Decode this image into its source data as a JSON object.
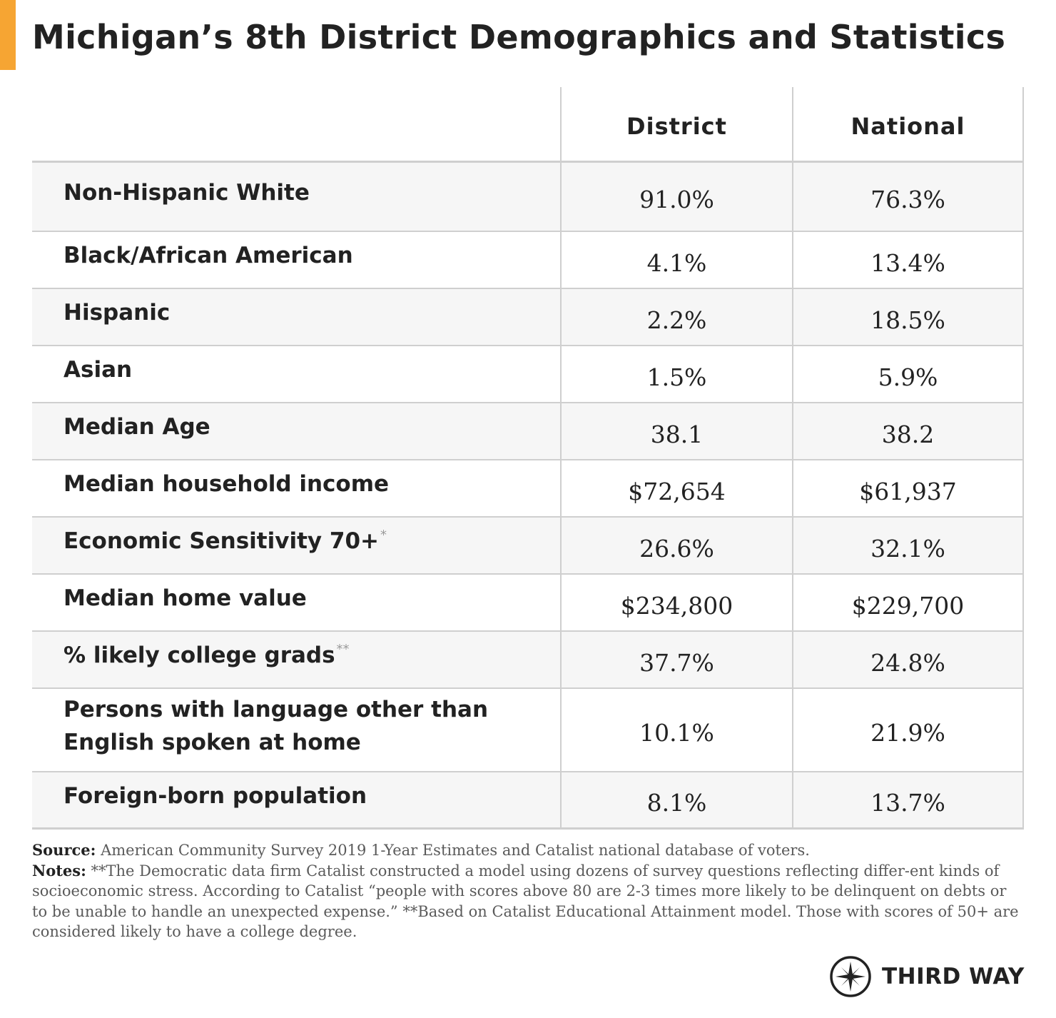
{
  "colors": {
    "accent": "#f6a533",
    "text": "#222222",
    "grid": "#cfcfcf",
    "row_shade": "#f6f6f6",
    "notes_text": "#5a5a5a"
  },
  "title": "Michigan’s 8th District Demographics and Statistics",
  "table": {
    "columns": [
      "District",
      "National"
    ],
    "rows": [
      {
        "label": "Non-Hispanic White",
        "marker": "",
        "district": "91.0%",
        "national": "76.3%"
      },
      {
        "label": "Black/African American",
        "marker": "",
        "district": "4.1%",
        "national": "13.4%"
      },
      {
        "label": "Hispanic",
        "marker": "",
        "district": "2.2%",
        "national": "18.5%"
      },
      {
        "label": "Asian",
        "marker": "",
        "district": "1.5%",
        "national": "5.9%"
      },
      {
        "label": "Median Age",
        "marker": "",
        "district": "38.1",
        "national": "38.2"
      },
      {
        "label": "Median household income",
        "marker": "",
        "district": "$72,654",
        "national": "$61,937"
      },
      {
        "label": "Economic Sensitivity 70+",
        "marker": "*",
        "district": "26.6%",
        "national": "32.1%"
      },
      {
        "label": "Median home value",
        "marker": "",
        "district": "$234,800",
        "national": "$229,700"
      },
      {
        "label": "% likely college grads",
        "marker": "**",
        "district": "37.7%",
        "national": "24.8%"
      },
      {
        "label": "Persons with language other than English spoken at home",
        "marker": "",
        "district": "10.1%",
        "national": "21.9%"
      },
      {
        "label": "Foreign-born population",
        "marker": "",
        "district": "8.1%",
        "national": "13.7%"
      }
    ]
  },
  "source": {
    "label": "Source:",
    "text": " American Community Survey 2019 1-Year Estimates and Catalist national database of voters."
  },
  "notes": {
    "label": "Notes:",
    "text": " **The Democratic data firm Catalist constructed a model using dozens of survey questions reflecting differ-ent kinds of socioeconomic stress. According to Catalist “people with scores above 80 are 2-3 times more likely to be delinquent on debts or to be unable to handle an unexpected expense.” **Based on Catalist Educational Attainment model. Those with scores of 50+ are considered likely to have a college degree."
  },
  "logo": {
    "icon": "compass-icon",
    "text": "THIRD WAY"
  }
}
